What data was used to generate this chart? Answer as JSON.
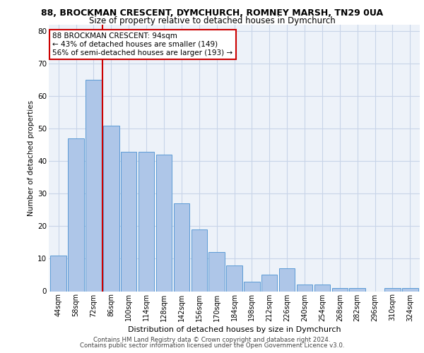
{
  "title1": "88, BROCKMAN CRESCENT, DYMCHURCH, ROMNEY MARSH, TN29 0UA",
  "title2": "Size of property relative to detached houses in Dymchurch",
  "xlabel": "Distribution of detached houses by size in Dymchurch",
  "ylabel": "Number of detached properties",
  "categories": [
    "44sqm",
    "58sqm",
    "72sqm",
    "86sqm",
    "100sqm",
    "114sqm",
    "128sqm",
    "142sqm",
    "156sqm",
    "170sqm",
    "184sqm",
    "198sqm",
    "212sqm",
    "226sqm",
    "240sqm",
    "254sqm",
    "268sqm",
    "282sqm",
    "296sqm",
    "310sqm",
    "324sqm"
  ],
  "values": [
    11,
    47,
    65,
    51,
    43,
    43,
    42,
    27,
    19,
    12,
    8,
    3,
    5,
    7,
    2,
    2,
    1,
    1,
    0,
    1,
    1
  ],
  "bar_color": "#aec6e8",
  "bar_edge_color": "#5b9bd5",
  "vline_x": 2.5,
  "vline_color": "#cc0000",
  "annotation_line1": "88 BROCKMAN CRESCENT: 94sqm",
  "annotation_line2": "← 43% of detached houses are smaller (149)",
  "annotation_line3": "56% of semi-detached houses are larger (193) →",
  "annotation_box_color": "#ffffff",
  "annotation_box_edge": "#cc0000",
  "ylim": [
    0,
    82
  ],
  "yticks": [
    0,
    10,
    20,
    30,
    40,
    50,
    60,
    70,
    80
  ],
  "footer1": "Contains HM Land Registry data © Crown copyright and database right 2024.",
  "footer2": "Contains public sector information licensed under the Open Government Licence v3.0.",
  "bg_color": "#edf2f9"
}
